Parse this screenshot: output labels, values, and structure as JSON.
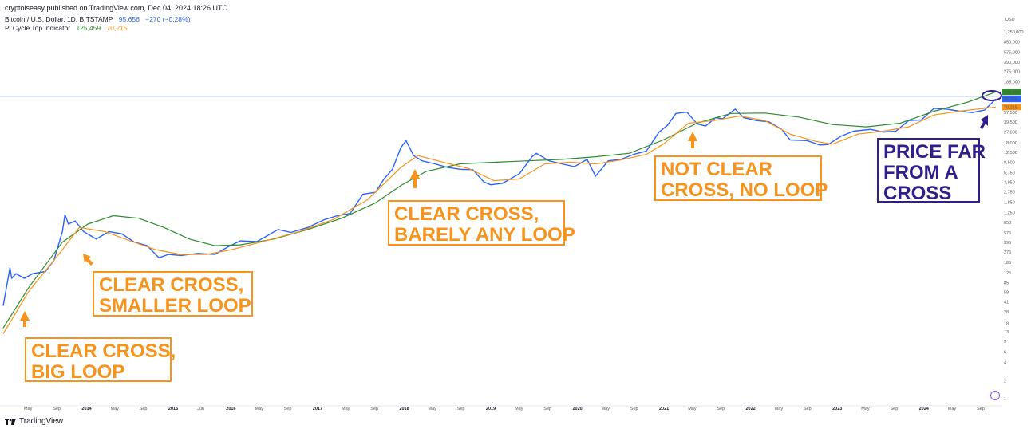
{
  "header": {
    "published": "cryptoiseasy published on TradingView.com, Dec 04, 2024 18:26 UTC"
  },
  "legend": {
    "symbol": "Bitcoin / U.S. Dollar, 1D, BITSTAMP",
    "price": "95,656",
    "change": "−270 (−0.28%)",
    "indicator_name": "Pi Cycle Top Indicator",
    "indicator_val1": "125,459",
    "indicator_val2": "70,215"
  },
  "price_axis": {
    "currency": "USD",
    "ticks": [
      "1,250,000",
      "850,000",
      "575,000",
      "390,000",
      "275,000",
      "185,000",
      "57,500",
      "39,500",
      "27,000",
      "18,000",
      "12,500",
      "8,500",
      "5,750",
      "3,950",
      "2,750",
      "1,850",
      "1,250",
      "850",
      "575",
      "395",
      "275",
      "185",
      "125",
      "85",
      "59",
      "41",
      "28",
      "18",
      "13",
      "9",
      "6",
      "4",
      "2",
      "1"
    ],
    "labels": [
      {
        "text": "125,459",
        "color": "#2e8b2e"
      },
      {
        "text": "95,656",
        "color": "#2962ff"
      },
      {
        "text": "70,215",
        "color": "#f7931a"
      }
    ]
  },
  "time_axis": {
    "ticks": [
      {
        "label": "May",
        "year": false
      },
      {
        "label": "Sep",
        "year": false
      },
      {
        "label": "2014",
        "year": true
      },
      {
        "label": "May",
        "year": false
      },
      {
        "label": "Sep",
        "year": false
      },
      {
        "label": "2015",
        "year": true
      },
      {
        "label": "Jun",
        "year": false
      },
      {
        "label": "2016",
        "year": true
      },
      {
        "label": "May",
        "year": false
      },
      {
        "label": "Sep",
        "year": false
      },
      {
        "label": "2017",
        "year": true
      },
      {
        "label": "May",
        "year": false
      },
      {
        "label": "Sep",
        "year": false
      },
      {
        "label": "2018",
        "year": true
      },
      {
        "label": "May",
        "year": false
      },
      {
        "label": "Sep",
        "year": false
      },
      {
        "label": "2019",
        "year": true
      },
      {
        "label": "May",
        "year": false
      },
      {
        "label": "Sep",
        "year": false
      },
      {
        "label": "2020",
        "year": true
      },
      {
        "label": "May",
        "year": false
      },
      {
        "label": "Sep",
        "year": false
      },
      {
        "label": "2021",
        "year": true
      },
      {
        "label": "May",
        "year": false
      },
      {
        "label": "Sep",
        "year": false
      },
      {
        "label": "2022",
        "year": true
      },
      {
        "label": "May",
        "year": false
      },
      {
        "label": "Sep",
        "year": false
      },
      {
        "label": "2023",
        "year": true
      },
      {
        "label": "May",
        "year": false
      },
      {
        "label": "Sep",
        "year": false
      },
      {
        "label": "2024",
        "year": true
      },
      {
        "label": "May",
        "year": false
      },
      {
        "label": "Sep",
        "year": false
      }
    ]
  },
  "annotations": [
    {
      "line1": "CLEAR CROSS,",
      "line2": "BIG LOOP",
      "color": "#f7931a"
    },
    {
      "line1": "CLEAR CROSS,",
      "line2": "SMALLER LOOP",
      "color": "#f7931a"
    },
    {
      "line1": "CLEAR CROSS,",
      "line2": "BARELY ANY LOOP",
      "color": "#f7931a"
    },
    {
      "line1": "NOT CLEAR",
      "line2": "CROSS, NO LOOP",
      "color": "#f7931a"
    },
    {
      "line1": "PRICE FAR",
      "line2": "FROM A",
      "line3": "CROSS",
      "color": "#2f1f8a"
    }
  ],
  "footer": {
    "brand": "TradingView"
  },
  "chart_data": {
    "type": "line",
    "y_scale": "log",
    "ylim": [
      1,
      1250000
    ],
    "xlim": [
      2013.2,
      2024.95
    ],
    "series": [
      {
        "name": "Bitcoin / U.S. Dollar, 1D, BITSTAMP",
        "color": "#2962ff",
        "x": [
          2013.2,
          2013.28,
          2013.3,
          2013.35,
          2013.45,
          2013.55,
          2013.7,
          2013.8,
          2013.9,
          2013.93,
          2013.97,
          2014.05,
          2014.15,
          2014.3,
          2014.45,
          2014.6,
          2014.75,
          2014.9,
          2015.04,
          2015.15,
          2015.3,
          2015.5,
          2015.7,
          2015.85,
          2016.0,
          2016.2,
          2016.45,
          2016.6,
          2016.8,
          2017.0,
          2017.15,
          2017.3,
          2017.45,
          2017.6,
          2017.7,
          2017.8,
          2017.9,
          2017.96,
          2018.05,
          2018.15,
          2018.3,
          2018.45,
          2018.6,
          2018.75,
          2018.88,
          2018.96,
          2019.1,
          2019.3,
          2019.45,
          2019.5,
          2019.65,
          2019.8,
          2019.95,
          2020.1,
          2020.2,
          2020.35,
          2020.5,
          2020.65,
          2020.8,
          2020.95,
          2021.05,
          2021.15,
          2021.28,
          2021.4,
          2021.5,
          2021.62,
          2021.7,
          2021.85,
          2021.95,
          2022.1,
          2022.25,
          2022.4,
          2022.5,
          2022.7,
          2022.85,
          2022.95,
          2023.1,
          2023.25,
          2023.45,
          2023.6,
          2023.75,
          2023.9,
          2024.05,
          2024.2,
          2024.35,
          2024.5,
          2024.65,
          2024.8,
          2024.93
        ],
        "y": [
          35,
          150,
          100,
          120,
          100,
          120,
          130,
          200,
          600,
          1150,
          800,
          900,
          600,
          450,
          600,
          550,
          400,
          350,
          220,
          250,
          240,
          260,
          250,
          330,
          420,
          410,
          650,
          580,
          700,
          950,
          1100,
          1200,
          2500,
          2700,
          4500,
          6500,
          15000,
          19500,
          11000,
          9000,
          8000,
          7000,
          6500,
          6400,
          4000,
          3600,
          3800,
          5500,
          10500,
          12000,
          9000,
          8000,
          7200,
          9500,
          5000,
          9000,
          9500,
          11500,
          13000,
          27000,
          35000,
          55000,
          58000,
          37000,
          34000,
          47000,
          45000,
          65000,
          47000,
          42000,
          40000,
          30000,
          20000,
          19500,
          16500,
          16800,
          23000,
          28000,
          30000,
          27000,
          28000,
          42000,
          43000,
          67000,
          65000,
          60000,
          57000,
          63000,
          95656
        ]
      },
      {
        "name": "",
        "color": "#2e8b2e",
        "x": [
          2013.2,
          2013.5,
          2013.9,
          2014.2,
          2014.5,
          2014.8,
          2015.1,
          2015.4,
          2015.7,
          2016.0,
          2016.4,
          2016.8,
          2017.2,
          2017.6,
          2017.9,
          2018.2,
          2018.6,
          2019.0,
          2019.4,
          2019.8,
          2020.2,
          2020.6,
          2021.0,
          2021.4,
          2021.8,
          2022.2,
          2022.6,
          2023.0,
          2023.4,
          2023.8,
          2024.2,
          2024.6,
          2024.93
        ],
        "y": [
          15,
          70,
          400,
          800,
          1100,
          1000,
          700,
          450,
          350,
          360,
          450,
          650,
          1000,
          1800,
          3500,
          6000,
          8000,
          8500,
          9000,
          9500,
          10500,
          12000,
          20000,
          38000,
          55000,
          56000,
          48000,
          36000,
          33000,
          38000,
          60000,
          85000,
          125459
        ]
      },
      {
        "name": "",
        "color": "#f7931a",
        "x": [
          2013.2,
          2013.5,
          2013.9,
          2014.1,
          2014.4,
          2014.7,
          2015.0,
          2015.3,
          2015.6,
          2015.9,
          2016.3,
          2016.7,
          2017.1,
          2017.5,
          2017.9,
          2018.1,
          2018.4,
          2018.7,
          2019.0,
          2019.3,
          2019.6,
          2019.9,
          2020.2,
          2020.5,
          2020.8,
          2021.0,
          2021.3,
          2021.6,
          2021.9,
          2022.2,
          2022.5,
          2022.8,
          2023.0,
          2023.3,
          2023.6,
          2023.9,
          2024.2,
          2024.5,
          2024.93
        ],
        "y": [
          12,
          60,
          300,
          700,
          600,
          420,
          300,
          250,
          250,
          300,
          420,
          600,
          950,
          2000,
          7000,
          11000,
          8500,
          6700,
          4200,
          4500,
          8000,
          8500,
          8000,
          9300,
          11500,
          17000,
          38000,
          42000,
          50000,
          42000,
          25000,
          19000,
          17000,
          25000,
          28000,
          33000,
          52000,
          60000,
          70215
        ]
      }
    ]
  }
}
